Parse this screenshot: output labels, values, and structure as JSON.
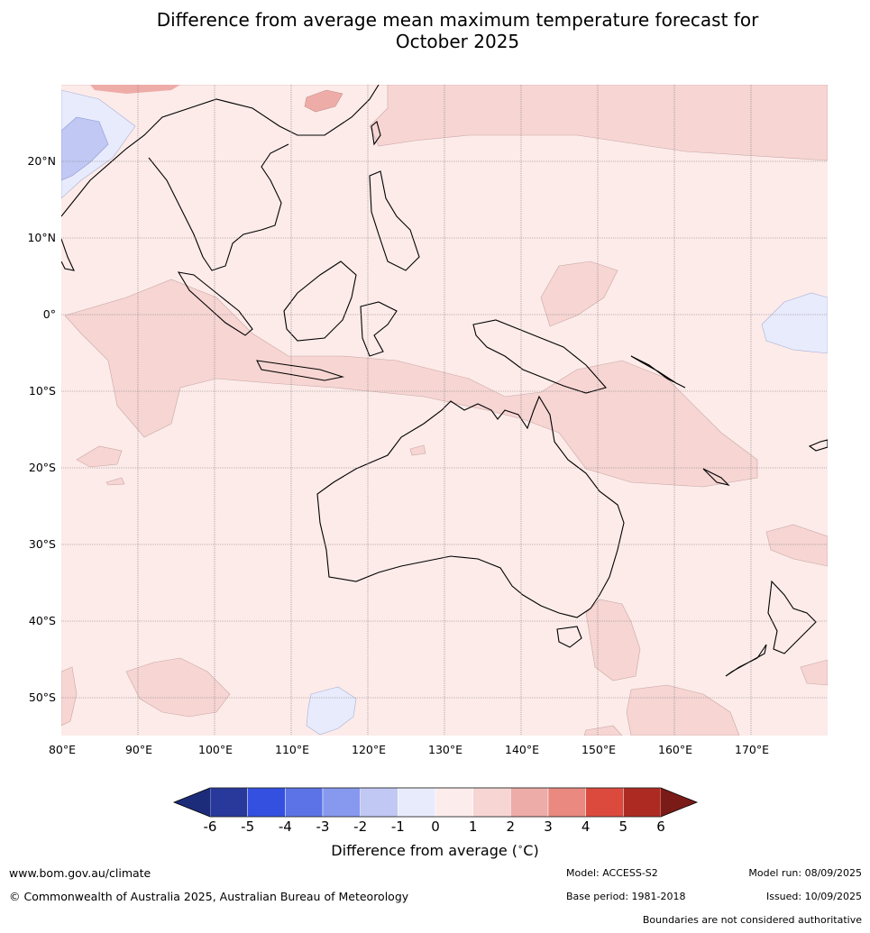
{
  "title_line1": "Difference from average mean maximum temperature forecast for",
  "title_line2": "October 2025",
  "lat_labels": [
    "20°N",
    "10°N",
    "0°",
    "10°S",
    "20°S",
    "30°S",
    "40°S",
    "50°S"
  ],
  "lon_labels": [
    "80°E",
    "90°E",
    "100°E",
    "110°E",
    "120°E",
    "130°E",
    "140°E",
    "150°E",
    "160°E",
    "170°E"
  ],
  "colorbar": {
    "ticks": [
      "-6",
      "-5",
      "-4",
      "-3",
      "-2",
      "-1",
      "0",
      "1",
      "2",
      "3",
      "4",
      "5",
      "6"
    ],
    "colors": [
      "#28399b",
      "#3350e0",
      "#5b73e6",
      "#8799ee",
      "#c1c8f4",
      "#e8ebfb",
      "#fceceb",
      "#f6d5d3",
      "#eeaca8",
      "#e98980",
      "#dc4a3e",
      "#ad2a22"
    ],
    "under_color": "#1d2c7a",
    "over_color": "#7a1b18",
    "title": "Difference from average ($^\\circ$C)"
  },
  "map_colors": {
    "background": "#fcebe9",
    "warm_1_2": "#f6d5d3",
    "warm_2_3": "#eeaca8",
    "cool_0_1": "#e8ebfb",
    "cool_1_2": "#c1c8f4"
  },
  "footer": {
    "website": "www.bom.gov.au/climate",
    "copyright": "© Commonwealth of Australia 2025, Australian Bureau of Meteorology",
    "model": "Model: ACCESS-S2",
    "base_period": "Base period: 1981-2018",
    "model_run": "Model run: 08/09/2025",
    "issued": "Issued: 10/09/2025",
    "disclaimer": "Boundaries are not considered authoritative"
  }
}
